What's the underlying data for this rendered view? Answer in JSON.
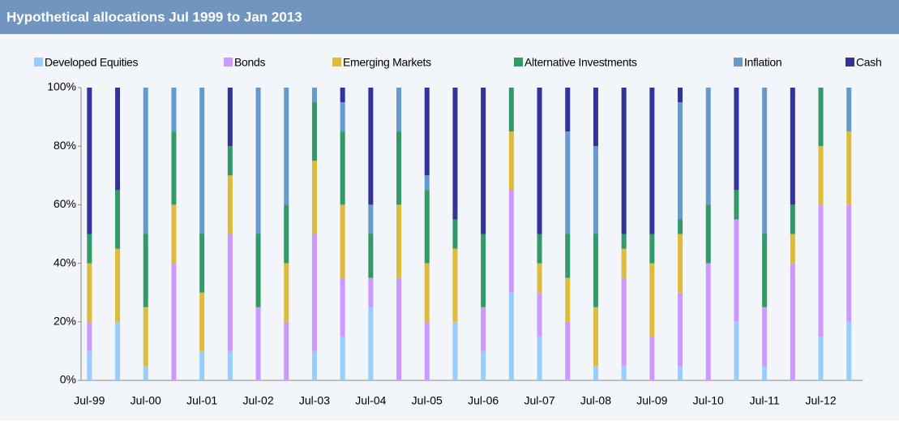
{
  "chart_data": {
    "type": "stacked_bar",
    "title": "Hypothetical allocations Jul 1999 to Jan 2013",
    "categories": [
      "Jul-99",
      null,
      "Jul-00",
      null,
      "Jul-01",
      null,
      "Jul-02",
      null,
      "Jul-03",
      null,
      "Jul-04",
      null,
      "Jul-05",
      null,
      "Jul-06",
      null,
      "Jul-07",
      null,
      "Jul-08",
      null,
      "Jul-09",
      null,
      "Jul-10",
      null,
      "Jul-11",
      null,
      "Jul-12",
      null
    ],
    "series": [
      {
        "name": "Developed Equities",
        "color": "#99ccff",
        "values": [
          10,
          20,
          5,
          0,
          10,
          10,
          0,
          0,
          10,
          15,
          25,
          0,
          0,
          20,
          10,
          30,
          15,
          0,
          5,
          5,
          0,
          5,
          0,
          20,
          5,
          0,
          15,
          20
        ]
      },
      {
        "name": "Bonds",
        "color": "#cc99ff",
        "values": [
          10,
          0,
          0,
          40,
          0,
          40,
          25,
          20,
          40,
          20,
          10,
          35,
          20,
          0,
          15,
          35,
          15,
          20,
          0,
          30,
          15,
          25,
          40,
          35,
          20,
          40,
          45,
          40
        ]
      },
      {
        "name": "Emerging Markets",
        "color": "#dfbb3a",
        "values": [
          20,
          25,
          20,
          20,
          20,
          20,
          0,
          20,
          25,
          25,
          0,
          25,
          20,
          25,
          0,
          20,
          10,
          15,
          20,
          10,
          25,
          20,
          0,
          0,
          0,
          10,
          20,
          25
        ]
      },
      {
        "name": "Alternative Investments",
        "color": "#339966",
        "values": [
          10,
          20,
          25,
          25,
          20,
          10,
          25,
          20,
          20,
          25,
          15,
          25,
          25,
          10,
          25,
          15,
          10,
          15,
          25,
          5,
          10,
          5,
          20,
          10,
          25,
          10,
          20,
          0
        ]
      },
      {
        "name": "Inflation",
        "color": "#6699cc",
        "values": [
          0,
          0,
          50,
          15,
          50,
          0,
          50,
          40,
          5,
          10,
          10,
          15,
          5,
          0,
          0,
          0,
          0,
          35,
          30,
          0,
          0,
          40,
          40,
          0,
          50,
          0,
          0,
          15
        ]
      },
      {
        "name": "Cash",
        "color": "#333399",
        "values": [
          50,
          35,
          0,
          0,
          0,
          20,
          0,
          0,
          0,
          5,
          40,
          0,
          30,
          45,
          50,
          0,
          50,
          15,
          20,
          50,
          50,
          5,
          0,
          35,
          0,
          40,
          0,
          0
        ]
      }
    ],
    "ylim": [
      0,
      100
    ],
    "yticks": [
      {
        "value": 0,
        "label": "0%"
      },
      {
        "value": 20,
        "label": "20%"
      },
      {
        "value": 40,
        "label": "40%"
      },
      {
        "value": 60,
        "label": "60%"
      },
      {
        "value": 80,
        "label": "80%"
      },
      {
        "value": 100,
        "label": "100%"
      }
    ]
  }
}
